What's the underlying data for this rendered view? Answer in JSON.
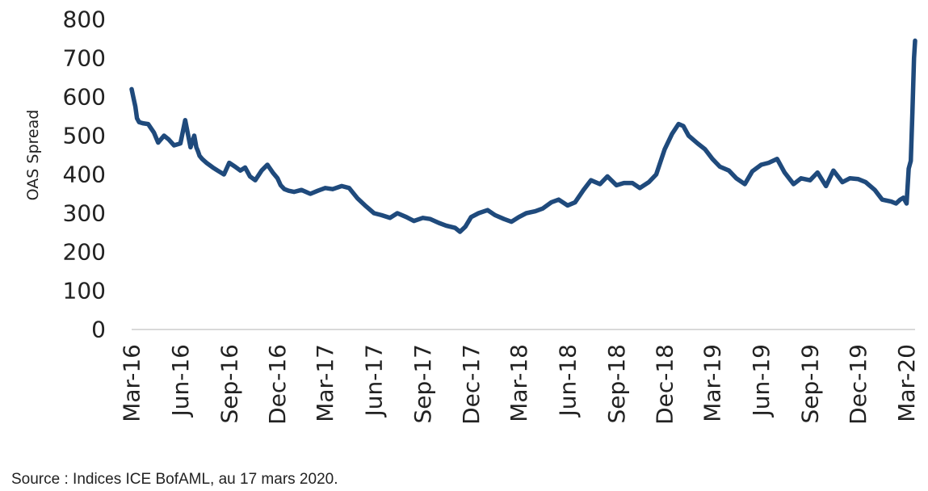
{
  "chart_data": {
    "type": "line",
    "title": "",
    "xlabel": "",
    "ylabel": "OAS Spread",
    "ylim": [
      0,
      800
    ],
    "yticks": [
      0,
      100,
      200,
      300,
      400,
      500,
      600,
      700,
      800
    ],
    "xlim": [
      "2016-03-01",
      "2020-03-17"
    ],
    "x_tick_labels": [
      "Mar-16",
      "Jun-16",
      "Sep-16",
      "Dec-16",
      "Mar-17",
      "Jun-17",
      "Sep-17",
      "Dec-17",
      "Mar-18",
      "Jun-18",
      "Sep-18",
      "Dec-18",
      "Mar-19",
      "Jun-19",
      "Sep-19",
      "Dec-19",
      "Mar-20"
    ],
    "x_tick_dates": [
      "2016-03-01",
      "2016-06-01",
      "2016-09-01",
      "2016-12-01",
      "2017-03-01",
      "2017-06-01",
      "2017-09-01",
      "2017-12-01",
      "2018-03-01",
      "2018-06-01",
      "2018-09-01",
      "2018-12-01",
      "2019-03-01",
      "2019-06-01",
      "2019-09-01",
      "2019-12-01",
      "2020-03-01"
    ],
    "grid": false,
    "line_color": "#1f4a7c",
    "series": [
      {
        "x": [
          "2016-03-01",
          "2016-03-04",
          "2016-03-08",
          "2016-03-11",
          "2016-03-15",
          "2016-03-22",
          "2016-04-01",
          "2016-04-12",
          "2016-04-20",
          "2016-05-01",
          "2016-05-10",
          "2016-05-20",
          "2016-06-01",
          "2016-06-10",
          "2016-06-20",
          "2016-06-27",
          "2016-07-01",
          "2016-07-04",
          "2016-07-07",
          "2016-07-12",
          "2016-07-20",
          "2016-08-01",
          "2016-08-10",
          "2016-08-22",
          "2016-09-01",
          "2016-09-12",
          "2016-09-22",
          "2016-10-01",
          "2016-10-10",
          "2016-10-20",
          "2016-11-01",
          "2016-11-12",
          "2016-11-22",
          "2016-12-01",
          "2016-12-07",
          "2016-12-14",
          "2016-12-22",
          "2017-01-01",
          "2017-01-15",
          "2017-02-01",
          "2017-02-15",
          "2017-03-01",
          "2017-03-15",
          "2017-04-01",
          "2017-04-15",
          "2017-05-01",
          "2017-05-15",
          "2017-06-01",
          "2017-06-15",
          "2017-07-01",
          "2017-07-15",
          "2017-08-01",
          "2017-08-15",
          "2017-09-01",
          "2017-09-15",
          "2017-10-01",
          "2017-10-15",
          "2017-11-01",
          "2017-11-10",
          "2017-11-20",
          "2017-12-01",
          "2017-12-15",
          "2018-01-01",
          "2018-01-15",
          "2018-02-01",
          "2018-02-15",
          "2018-03-01",
          "2018-03-15",
          "2018-04-01",
          "2018-04-15",
          "2018-05-01",
          "2018-05-15",
          "2018-06-01",
          "2018-06-15",
          "2018-07-01",
          "2018-07-15",
          "2018-08-01",
          "2018-08-15",
          "2018-09-01",
          "2018-09-15",
          "2018-10-01",
          "2018-10-15",
          "2018-11-01",
          "2018-11-15",
          "2018-12-01",
          "2018-12-15",
          "2018-12-27",
          "2019-01-05",
          "2019-01-15",
          "2019-02-01",
          "2019-02-15",
          "2019-03-01",
          "2019-03-15",
          "2019-04-01",
          "2019-04-15",
          "2019-05-01",
          "2019-05-15",
          "2019-06-01",
          "2019-06-15",
          "2019-07-01",
          "2019-07-15",
          "2019-08-01",
          "2019-08-15",
          "2019-09-01",
          "2019-09-15",
          "2019-10-01",
          "2019-10-15",
          "2019-11-01",
          "2019-11-15",
          "2019-12-01",
          "2019-12-15",
          "2020-01-01",
          "2020-01-15",
          "2020-02-01",
          "2020-02-10",
          "2020-02-18",
          "2020-02-24",
          "2020-03-01",
          "2020-03-05",
          "2020-03-09",
          "2020-03-12",
          "2020-03-15",
          "2020-03-17"
        ],
        "values": [
          620,
          600,
          575,
          545,
          535,
          532,
          530,
          508,
          482,
          500,
          490,
          475,
          480,
          540,
          470,
          500,
          470,
          460,
          448,
          440,
          430,
          418,
          410,
          400,
          430,
          420,
          410,
          418,
          395,
          385,
          410,
          425,
          405,
          390,
          372,
          362,
          358,
          355,
          360,
          350,
          358,
          365,
          362,
          370,
          365,
          338,
          320,
          300,
          295,
          288,
          300,
          290,
          280,
          288,
          285,
          275,
          268,
          262,
          252,
          265,
          290,
          300,
          308,
          295,
          285,
          278,
          290,
          300,
          305,
          312,
          328,
          335,
          320,
          328,
          360,
          385,
          375,
          395,
          372,
          378,
          378,
          365,
          380,
          400,
          465,
          505,
          530,
          525,
          500,
          480,
          465,
          440,
          420,
          410,
          390,
          375,
          408,
          425,
          430,
          440,
          405,
          375,
          390,
          385,
          405,
          370,
          410,
          380,
          390,
          388,
          380,
          360,
          335,
          330,
          325,
          335,
          340,
          325,
          415,
          435,
          560,
          700,
          745
        ]
      }
    ],
    "source_note": "Source : Indices ICE BofAML, au 17 mars 2020."
  }
}
